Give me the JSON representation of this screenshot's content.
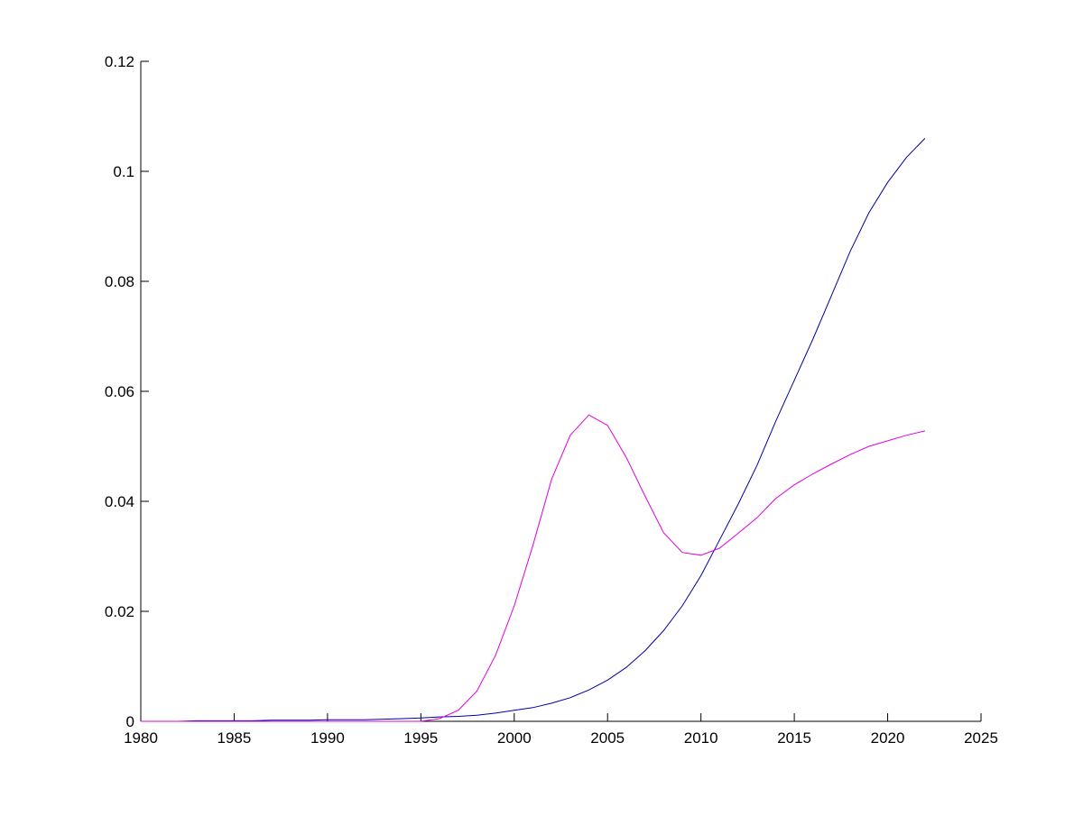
{
  "chart_data": {
    "type": "line",
    "title": "",
    "xlabel": "",
    "ylabel": "",
    "xlim": [
      1980,
      2025
    ],
    "ylim": [
      0,
      0.12
    ],
    "xticks": [
      "1980",
      "1985",
      "1990",
      "1995",
      "2000",
      "2005",
      "2010",
      "2015",
      "2020",
      "2025"
    ],
    "yticks": [
      "0",
      "0.02",
      "0.04",
      "0.06",
      "0.08",
      "0.1",
      "0.12"
    ],
    "grid": false,
    "x": [
      1980,
      1981,
      1982,
      1983,
      1984,
      1985,
      1986,
      1987,
      1988,
      1989,
      1990,
      1991,
      1992,
      1993,
      1994,
      1995,
      1996,
      1997,
      1998,
      1999,
      2000,
      2001,
      2002,
      2003,
      2004,
      2005,
      2006,
      2007,
      2008,
      2009,
      2010,
      2011,
      2012,
      2013,
      2014,
      2015,
      2016,
      2017,
      2018,
      2019,
      2020,
      2021,
      2022
    ],
    "series": [
      {
        "color": "#0000a0",
        "values": [
          0,
          0,
          0,
          0.0001,
          0.0001,
          0.0001,
          0.0001,
          0.0002,
          0.0002,
          0.0002,
          0.0003,
          0.0003,
          0.0003,
          0.0004,
          0.0005,
          0.0006,
          0.0008,
          0.0009,
          0.0011,
          0.0015,
          0.002,
          0.0025,
          0.0033,
          0.0043,
          0.0057,
          0.0075,
          0.0098,
          0.0128,
          0.0165,
          0.021,
          0.0265,
          0.033,
          0.0395,
          0.0465,
          0.0545,
          0.062,
          0.0695,
          0.0775,
          0.0855,
          0.0925,
          0.098,
          0.1025,
          0.106
        ]
      },
      {
        "color": "#e000e0",
        "values": [
          0,
          0,
          0,
          0,
          0,
          0,
          0,
          0,
          0,
          0,
          0,
          0,
          0,
          0,
          0,
          0,
          0.0005,
          0.002,
          0.0055,
          0.012,
          0.021,
          0.032,
          0.044,
          0.052,
          0.0557,
          0.0538,
          0.048,
          0.041,
          0.0343,
          0.0307,
          0.0302,
          0.0315,
          0.0342,
          0.037,
          0.0405,
          0.043,
          0.045,
          0.0468,
          0.0485,
          0.05,
          0.051,
          0.052,
          0.0528
        ]
      }
    ]
  }
}
